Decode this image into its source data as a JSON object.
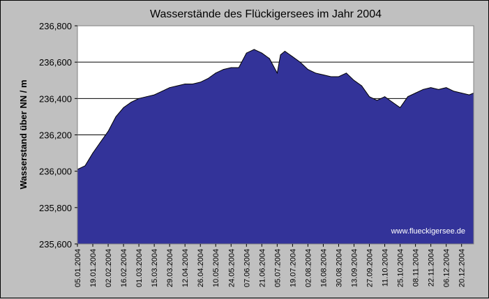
{
  "chart_data": {
    "type": "area",
    "title": "Wasserstände des Flückigersees im Jahr 2004",
    "ylabel": "Wasserstand über NN / m",
    "xlabel": "",
    "watermark": "www.flueckigersee.de",
    "ylim": [
      235.6,
      236.8
    ],
    "yticks": [
      236.8,
      236.6,
      236.4,
      236.2,
      236.0,
      235.8,
      235.6
    ],
    "ytick_labels": [
      "236,800",
      "236,600",
      "236,400",
      "236,200",
      "236,000",
      "235,800",
      "235,600"
    ],
    "grid": true,
    "fill_color": "#333399",
    "plot_bg": "#ffffff",
    "page_bg": "#c0c0c0",
    "xlim": [
      "2004-01-05",
      "2004-12-31"
    ],
    "xtick_labels": [
      "05.01.2004",
      "19.01.2004",
      "02.02.2004",
      "16.02.2004",
      "01.03.2004",
      "15.03.2004",
      "29.03.2004",
      "12.04.2004",
      "26.04.2004",
      "10.05.2004",
      "24.05.2004",
      "07.06.2004",
      "21.06.2004",
      "05.07.2004",
      "19.07.2004",
      "02.08.2004",
      "16.08.2004",
      "30.08.2004",
      "13.09.2004",
      "27.09.2004",
      "11.10.2004",
      "25.10.2004",
      "08.11.2004",
      "22.11.2004",
      "06.12.2004",
      "20.12.2004"
    ],
    "xtick_dates": [
      "2004-01-05",
      "2004-01-19",
      "2004-02-02",
      "2004-02-16",
      "2004-03-01",
      "2004-03-15",
      "2004-03-29",
      "2004-04-12",
      "2004-04-26",
      "2004-05-10",
      "2004-05-24",
      "2004-06-07",
      "2004-06-21",
      "2004-07-05",
      "2004-07-19",
      "2004-08-02",
      "2004-08-16",
      "2004-08-30",
      "2004-09-13",
      "2004-09-27",
      "2004-10-11",
      "2004-10-25",
      "2004-11-08",
      "2004-11-22",
      "2004-12-06",
      "2004-12-20"
    ],
    "x": [
      "2004-01-05",
      "2004-01-12",
      "2004-01-19",
      "2004-01-26",
      "2004-02-02",
      "2004-02-09",
      "2004-02-16",
      "2004-02-23",
      "2004-03-01",
      "2004-03-08",
      "2004-03-15",
      "2004-03-22",
      "2004-03-29",
      "2004-04-05",
      "2004-04-12",
      "2004-04-19",
      "2004-04-26",
      "2004-05-03",
      "2004-05-10",
      "2004-05-17",
      "2004-05-24",
      "2004-05-31",
      "2004-06-07",
      "2004-06-14",
      "2004-06-21",
      "2004-06-28",
      "2004-07-05",
      "2004-07-08",
      "2004-07-12",
      "2004-07-19",
      "2004-07-26",
      "2004-08-02",
      "2004-08-09",
      "2004-08-16",
      "2004-08-23",
      "2004-08-30",
      "2004-09-06",
      "2004-09-13",
      "2004-09-20",
      "2004-09-27",
      "2004-10-04",
      "2004-10-11",
      "2004-10-18",
      "2004-10-25",
      "2004-11-01",
      "2004-11-08",
      "2004-11-15",
      "2004-11-22",
      "2004-11-29",
      "2004-12-06",
      "2004-12-13",
      "2004-12-20",
      "2004-12-27",
      "2004-12-31"
    ],
    "values": [
      236.01,
      236.03,
      236.1,
      236.16,
      236.22,
      236.3,
      236.35,
      236.38,
      236.4,
      236.41,
      236.42,
      236.44,
      236.46,
      236.47,
      236.48,
      236.48,
      236.49,
      236.51,
      236.54,
      236.56,
      236.57,
      236.57,
      236.65,
      236.67,
      236.65,
      236.62,
      236.54,
      236.64,
      236.66,
      236.63,
      236.6,
      236.56,
      236.54,
      236.53,
      236.52,
      236.52,
      236.54,
      236.5,
      236.47,
      236.41,
      236.39,
      236.41,
      236.38,
      236.35,
      236.41,
      236.43,
      236.45,
      236.46,
      236.45,
      236.46,
      236.44,
      236.43,
      236.42,
      236.43
    ]
  }
}
